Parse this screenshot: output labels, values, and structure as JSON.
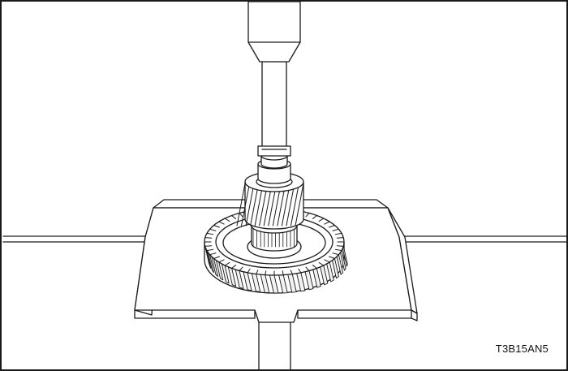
{
  "figure": {
    "code": "T3B15AN5"
  },
  "colors": {
    "line": "#1a1a1a",
    "fill": "#ffffff",
    "tooth_shade": "#f2f2f2"
  },
  "components": {
    "gear_teeth_outer": 48,
    "pinion_teeth": 14
  }
}
